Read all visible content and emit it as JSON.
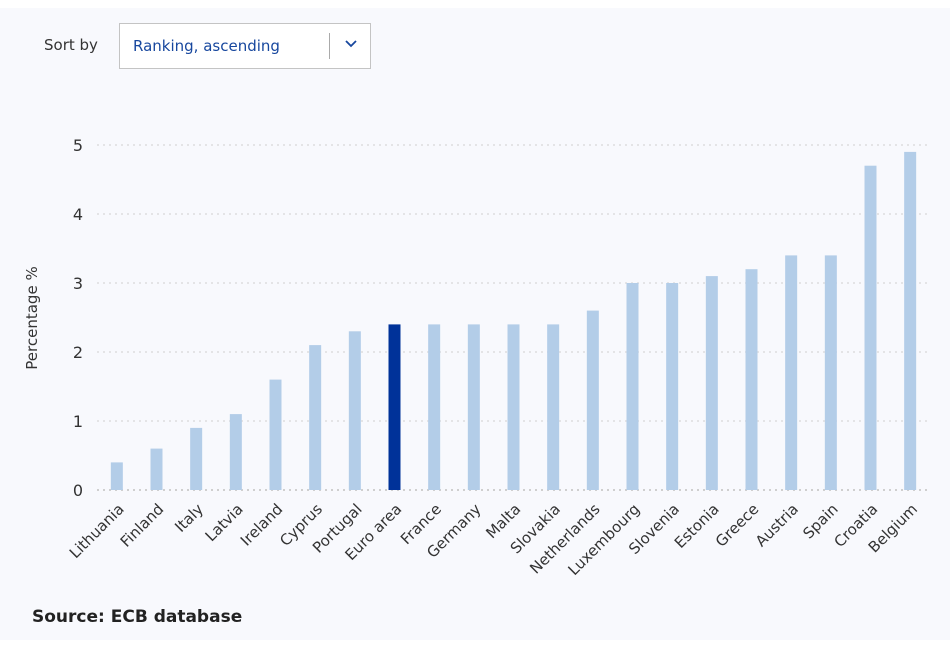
{
  "controls": {
    "sort_label": "Sort by",
    "sort_value": "Ranking, ascending",
    "sort_icon": "chevron-down-icon"
  },
  "footer": {
    "source": "Source: ECB database"
  },
  "colors": {
    "bar": "#b3cde8",
    "highlight": "#003299",
    "grid": "#cfcfcf"
  },
  "chart_data": {
    "type": "bar",
    "title": "",
    "xlabel": "",
    "ylabel": "Percentage %",
    "ylim": [
      0,
      5
    ],
    "yticks": [
      0,
      1,
      2,
      3,
      4,
      5
    ],
    "grid": true,
    "highlight_category": "Euro area",
    "categories": [
      "Lithuania",
      "Finland",
      "Italy",
      "Latvia",
      "Ireland",
      "Cyprus",
      "Portugal",
      "Euro area",
      "France",
      "Germany",
      "Malta",
      "Slovakia",
      "Netherlands",
      "Luxembourg",
      "Slovenia",
      "Estonia",
      "Greece",
      "Austria",
      "Spain",
      "Croatia",
      "Belgium"
    ],
    "values": [
      0.4,
      0.6,
      0.9,
      1.1,
      1.6,
      2.1,
      2.3,
      2.4,
      2.4,
      2.4,
      2.4,
      2.4,
      2.6,
      3.0,
      3.0,
      3.1,
      3.2,
      3.4,
      3.4,
      4.7,
      4.9
    ]
  }
}
